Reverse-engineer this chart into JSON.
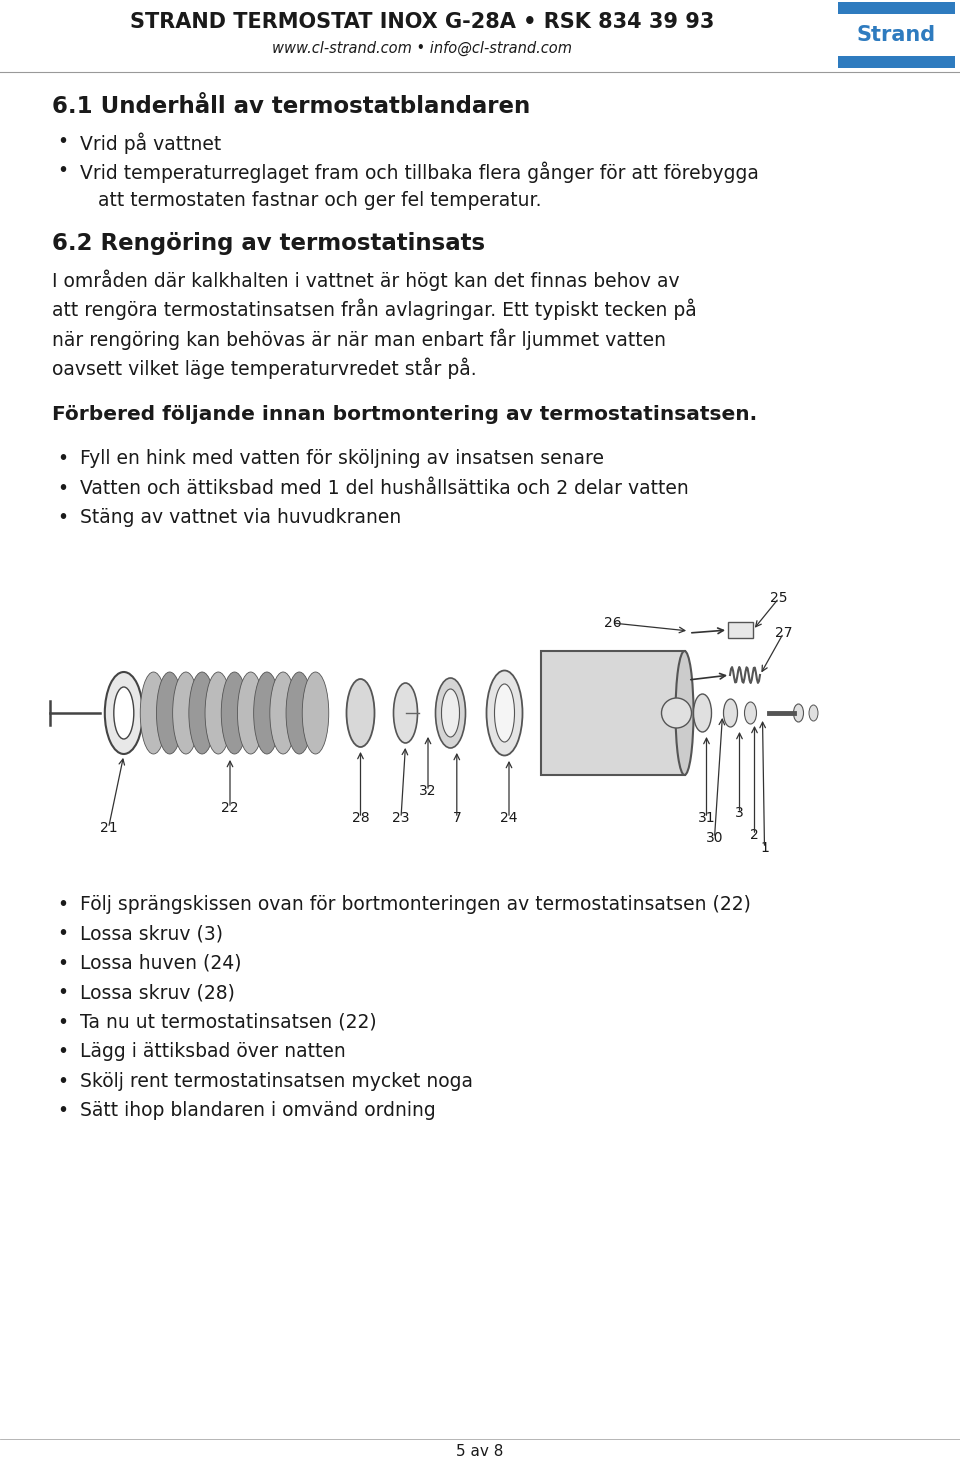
{
  "bg_color": "#ffffff",
  "page_width": 9.6,
  "page_height": 14.69,
  "header_title": "STRAND TERMOSTAT INOX G-28A • RSK 834 39 93",
  "header_subtitle": "www.cl-strand.com • info@cl-strand.com",
  "strand_logo_text": "Strand",
  "strand_blue": "#2e7bbf",
  "section_61_title": "6.1 Underhåll av termostatblandaren",
  "section_61_bullet1": "Vrid på vattnet",
  "section_61_bullet2a": "Vrid temperaturreglaget fram och tillbaka flera gånger för att förebygga",
  "section_61_bullet2b": "   att termostaten fastnar och ger fel temperatur.",
  "section_62_title": "6.2 Rengöring av termostatinsats",
  "section_62_line1": "I områden där kalkhalten i vattnet är högt kan det finnas behov av",
  "section_62_line2": "att rengöra termostatinsatsen från avlagringar. Ett typiskt tecken på",
  "section_62_line3": "när rengöring kan behövas är när man enbart får ljummet vatten",
  "section_62_line4": "oavsett vilket läge temperaturvredet står på.",
  "section_62_subtitle": "Förbered följande innan bortmontering av termostatinsatsen.",
  "section_62_bullets": [
    "Fyll en hink med vatten för sköljning av insatsen senare",
    "Vatten och ättiksbad med 1 del hushållsättika och 2 delar vatten",
    "Stäng av vattnet via huvudkranen"
  ],
  "section_bottom_bullets": [
    "Följ sprängskissen ovan för bortmonteringen av termostatinsatsen (22)",
    "Lossa skruv (3)",
    "Lossa huven (24)",
    "Lossa skruv (28)",
    "Ta nu ut termostatinsatsen (22)",
    "Lägg i ättiksbad över natten",
    "Skölj rent termostatinsatsen mycket noga",
    "Sätt ihop blandaren i omvänd ordning"
  ],
  "footer_text": "5 av 8",
  "text_color": "#1a1a1a",
  "body_fontsize": 13.5,
  "title_fontsize": 16.5,
  "header_fontsize": 15,
  "subtitle_fontsize": 14.5
}
